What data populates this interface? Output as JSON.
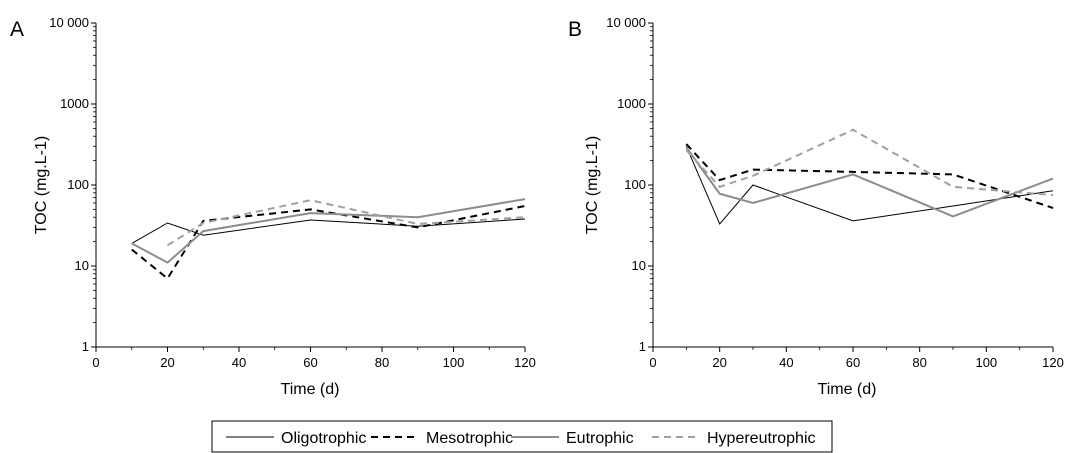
{
  "figure": {
    "x_ticks": [
      "0",
      "20",
      "40",
      "60",
      "80",
      "100",
      "120"
    ],
    "y_ticks": [
      "1",
      "10",
      "100",
      "1000",
      "10 000"
    ]
  },
  "legend": {
    "entries": [
      {
        "name": "Oligotrophic",
        "color": "#000000",
        "dash": "solid",
        "width": 1
      },
      {
        "name": "Mesotrophic",
        "color": "#000000",
        "dash": "dashed",
        "width": 2
      },
      {
        "name": "Eutrophic",
        "color": "#8c8c8c",
        "dash": "solid",
        "width": 2
      },
      {
        "name": "Hypereutrophic",
        "color": "#a0a0a0",
        "dash": "dashed",
        "width": 2
      }
    ]
  },
  "chart_data": [
    {
      "type": "line",
      "panel_label": "A",
      "xlabel": "Time (d)",
      "ylabel": "TOC (mg.L-1)",
      "xlim": [
        0,
        120
      ],
      "ylim": [
        1,
        10000
      ],
      "yscale": "log",
      "x": [
        10,
        20,
        30,
        60,
        90,
        120
      ],
      "series": [
        {
          "name": "Oligotrophic",
          "values": [
            19,
            34,
            24,
            37,
            31,
            38
          ]
        },
        {
          "name": "Mesotrophic",
          "values": [
            16,
            7,
            36,
            50,
            30,
            55
          ]
        },
        {
          "name": "Eutrophic",
          "values": [
            19,
            11,
            27,
            45,
            40,
            67
          ]
        },
        {
          "name": "Hypereutrophic",
          "values": [
            null,
            18,
            34,
            65,
            33,
            40
          ]
        }
      ]
    },
    {
      "type": "line",
      "panel_label": "B",
      "xlabel": "Time (d)",
      "ylabel": "TOC (mg.L-1)",
      "xlim": [
        0,
        120
      ],
      "ylim": [
        1,
        10000
      ],
      "yscale": "log",
      "x": [
        10,
        20,
        30,
        60,
        90,
        120
      ],
      "series": [
        {
          "name": "Oligotrophic",
          "values": [
            300,
            33,
            100,
            36,
            55,
            85
          ]
        },
        {
          "name": "Mesotrophic",
          "values": [
            320,
            115,
            155,
            145,
            135,
            52
          ]
        },
        {
          "name": "Eutrophic",
          "values": [
            290,
            78,
            60,
            135,
            41,
            120
          ]
        },
        {
          "name": "Hypereutrophic",
          "values": [
            270,
            95,
            130,
            480,
            95,
            75
          ]
        }
      ]
    }
  ]
}
